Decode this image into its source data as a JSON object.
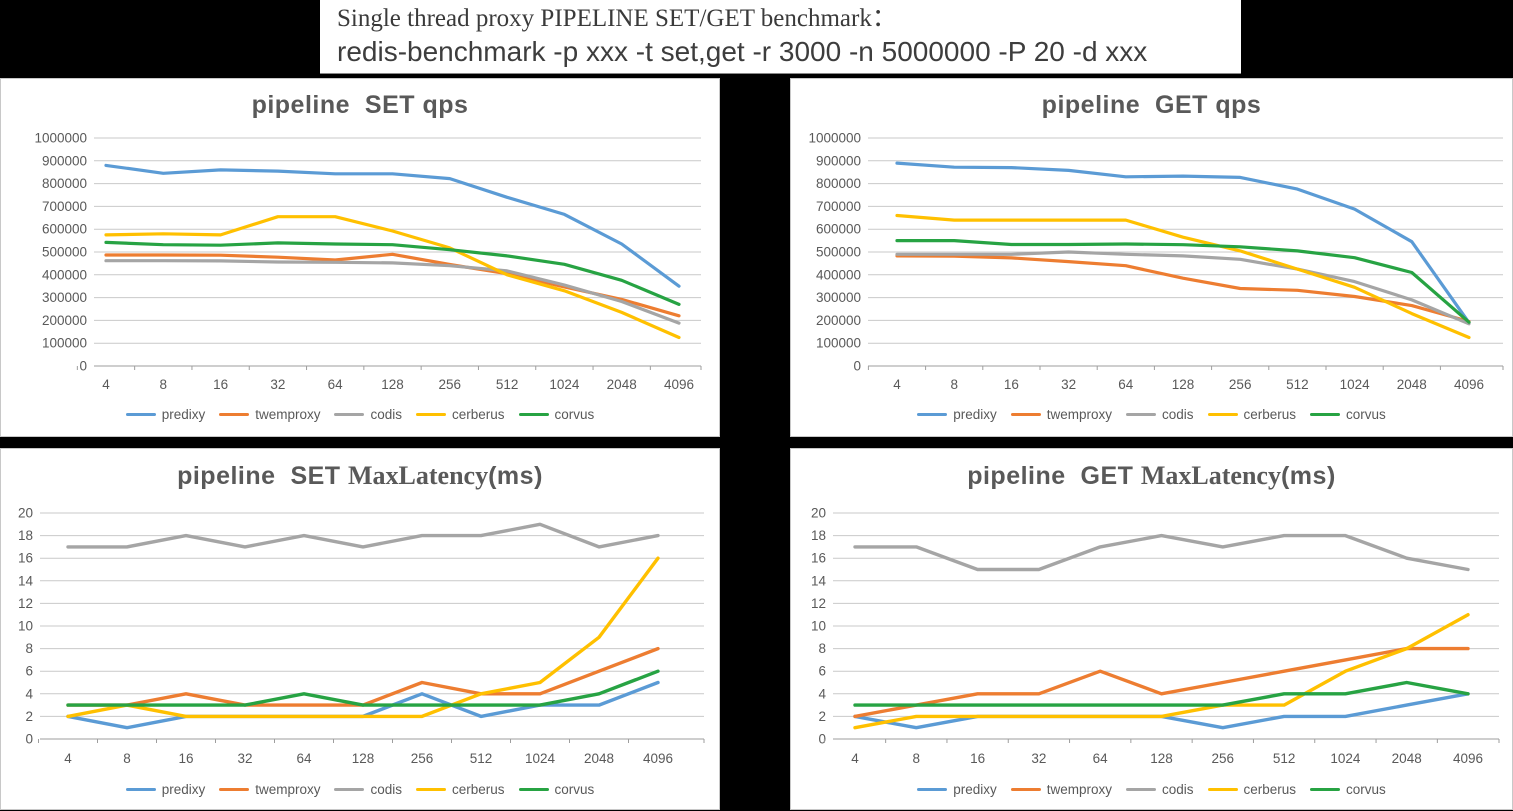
{
  "banner": {
    "line1": "Single thread proxy PIPELINE SET/GET benchmark：",
    "line2": "redis-benchmark -p xxx -t set,get -r 3000 -n 5000000 -P 20 -d xxx"
  },
  "colors": {
    "predixy": "#5B9BD5",
    "twemproxy": "#ED7D31",
    "codis": "#A5A5A5",
    "cerberus": "#FFC000",
    "corvus": "#27A343"
  },
  "chart_data": [
    {
      "type": "line",
      "title": "pipeline  SET qps",
      "categories": [
        "4",
        "8",
        "16",
        "32",
        "64",
        "128",
        "256",
        "512",
        "1024",
        "2048",
        "4096"
      ],
      "ylim": [
        0,
        1000000
      ],
      "ytick_step": 100000,
      "grid": true,
      "legend_position": "bottom",
      "series": [
        {
          "name": "predixy",
          "color": "#5B9BD5",
          "values": [
            880000,
            845000,
            860000,
            855000,
            843000,
            843000,
            822000,
            740000,
            665000,
            535000,
            350000
          ]
        },
        {
          "name": "twemproxy",
          "color": "#ED7D31",
          "values": [
            487000,
            487000,
            486000,
            477000,
            465000,
            490000,
            445000,
            405000,
            347000,
            292000,
            220000
          ]
        },
        {
          "name": "codis",
          "color": "#A5A5A5",
          "values": [
            462000,
            462000,
            461000,
            456000,
            455000,
            452000,
            440000,
            417000,
            355000,
            283000,
            188000
          ]
        },
        {
          "name": "cerberus",
          "color": "#FFC000",
          "values": [
            575000,
            580000,
            575000,
            655000,
            655000,
            592000,
            518000,
            400000,
            330000,
            235000,
            125000
          ]
        },
        {
          "name": "corvus",
          "color": "#27A343",
          "values": [
            542000,
            532000,
            530000,
            540000,
            535000,
            532000,
            510000,
            483000,
            446000,
            376000,
            270000
          ]
        }
      ]
    },
    {
      "type": "line",
      "title": "pipeline  GET qps",
      "categories": [
        "4",
        "8",
        "16",
        "32",
        "64",
        "128",
        "256",
        "512",
        "1024",
        "2048",
        "4096"
      ],
      "ylim": [
        0,
        1000000
      ],
      "ytick_step": 100000,
      "grid": true,
      "legend_position": "bottom",
      "series": [
        {
          "name": "predixy",
          "color": "#5B9BD5",
          "values": [
            890000,
            872000,
            870000,
            858000,
            830000,
            833000,
            827000,
            776000,
            688000,
            545000,
            190000
          ]
        },
        {
          "name": "twemproxy",
          "color": "#ED7D31",
          "values": [
            483000,
            482000,
            474000,
            458000,
            440000,
            385000,
            340000,
            332000,
            305000,
            265000,
            195000
          ]
        },
        {
          "name": "codis",
          "color": "#A5A5A5",
          "values": [
            490000,
            490000,
            490000,
            500000,
            490000,
            483000,
            468000,
            425000,
            370000,
            290000,
            185000
          ]
        },
        {
          "name": "cerberus",
          "color": "#FFC000",
          "values": [
            660000,
            640000,
            640000,
            640000,
            640000,
            565000,
            505000,
            425000,
            345000,
            230000,
            125000
          ]
        },
        {
          "name": "corvus",
          "color": "#27A343",
          "values": [
            550000,
            550000,
            533000,
            533000,
            535000,
            532000,
            523000,
            505000,
            475000,
            410000,
            192000
          ]
        }
      ]
    },
    {
      "type": "line",
      "title": "pipeline  SET MaxLatency(ms)",
      "categories": [
        "4",
        "8",
        "16",
        "32",
        "64",
        "128",
        "256",
        "512",
        "1024",
        "2048",
        "4096"
      ],
      "ylim": [
        0,
        20
      ],
      "ytick_step": 2,
      "grid": true,
      "legend_position": "bottom",
      "series": [
        {
          "name": "predixy",
          "color": "#5B9BD5",
          "values": [
            2,
            1,
            2,
            2,
            2,
            2,
            4,
            2,
            3,
            3,
            5
          ]
        },
        {
          "name": "twemproxy",
          "color": "#ED7D31",
          "values": [
            3,
            3,
            4,
            3,
            3,
            3,
            5,
            4,
            4,
            6,
            8
          ]
        },
        {
          "name": "codis",
          "color": "#A5A5A5",
          "values": [
            17,
            17,
            18,
            17,
            18,
            17,
            18,
            18,
            19,
            17,
            18
          ]
        },
        {
          "name": "cerberus",
          "color": "#FFC000",
          "values": [
            2,
            3,
            2,
            2,
            2,
            2,
            2,
            4,
            5,
            9,
            16
          ]
        },
        {
          "name": "corvus",
          "color": "#27A343",
          "values": [
            3,
            3,
            3,
            3,
            4,
            3,
            3,
            3,
            3,
            4,
            6
          ]
        }
      ]
    },
    {
      "type": "line",
      "title": "pipeline  GET MaxLatency(ms)",
      "categories": [
        "4",
        "8",
        "16",
        "32",
        "64",
        "128",
        "256",
        "512",
        "1024",
        "2048",
        "4096"
      ],
      "ylim": [
        0,
        20
      ],
      "ytick_step": 2,
      "grid": true,
      "legend_position": "bottom",
      "series": [
        {
          "name": "predixy",
          "color": "#5B9BD5",
          "values": [
            2,
            1,
            2,
            2,
            2,
            2,
            1,
            2,
            2,
            3,
            4
          ]
        },
        {
          "name": "twemproxy",
          "color": "#ED7D31",
          "values": [
            2,
            3,
            4,
            4,
            6,
            4,
            5,
            6,
            7,
            8,
            8
          ]
        },
        {
          "name": "codis",
          "color": "#A5A5A5",
          "values": [
            17,
            17,
            15,
            15,
            17,
            18,
            17,
            18,
            18,
            16,
            15
          ]
        },
        {
          "name": "cerberus",
          "color": "#FFC000",
          "values": [
            1,
            2,
            2,
            2,
            2,
            2,
            3,
            3,
            6,
            8,
            11
          ]
        },
        {
          "name": "corvus",
          "color": "#27A343",
          "values": [
            3,
            3,
            3,
            3,
            3,
            3,
            3,
            4,
            4,
            5,
            4
          ]
        }
      ]
    }
  ]
}
